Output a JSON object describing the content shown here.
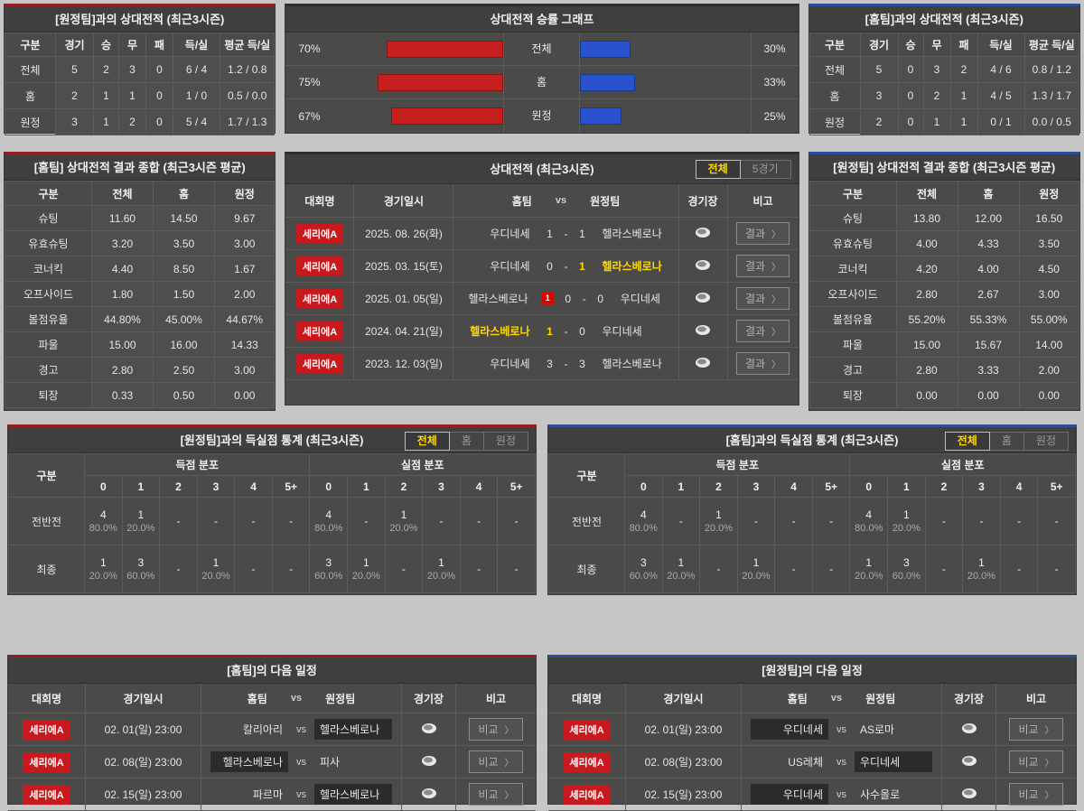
{
  "colors": {
    "accent_red": "#931f24",
    "accent_blue": "#2d4d9a",
    "bar_red": "#c5201d",
    "bar_blue": "#2952cc",
    "badge_red": "#c8191e",
    "win_yellow": "#ffd800"
  },
  "top_home_record": {
    "title": "[원정팀]과의 상대전적 (최근3시즌)",
    "headers": [
      "구분",
      "경기",
      "승",
      "무",
      "패",
      "득/실",
      "평균 득/실"
    ],
    "rows": [
      [
        "전체",
        "5",
        "2",
        "3",
        "0",
        "6 / 4",
        "1.2 / 0.8"
      ],
      [
        "홈",
        "2",
        "1",
        "1",
        "0",
        "1 / 0",
        "0.5 / 0.0"
      ],
      [
        "원정",
        "3",
        "1",
        "2",
        "0",
        "5 / 4",
        "1.7 / 1.3"
      ]
    ]
  },
  "winrate_chart": {
    "type": "bar",
    "title": "상대전적 승률 그래프",
    "rows": [
      {
        "left_label": "70%",
        "left_pct": 70,
        "center": "전체",
        "right_pct": 30,
        "right_label": "30%"
      },
      {
        "left_label": "75%",
        "left_pct": 75,
        "center": "홈",
        "right_pct": 33,
        "right_label": "33%"
      },
      {
        "left_label": "67%",
        "left_pct": 67,
        "center": "원정",
        "right_pct": 25,
        "right_label": "25%"
      }
    ]
  },
  "top_away_record": {
    "title": "[홈팀]과의 상대전적 (최근3시즌)",
    "headers": [
      "구분",
      "경기",
      "승",
      "무",
      "패",
      "득/실",
      "평균 득/실"
    ],
    "rows": [
      [
        "전체",
        "5",
        "0",
        "3",
        "2",
        "4 / 6",
        "0.8 / 1.2"
      ],
      [
        "홈",
        "3",
        "0",
        "2",
        "1",
        "4 / 5",
        "1.3 / 1.7"
      ],
      [
        "원정",
        "2",
        "0",
        "1",
        "1",
        "0 / 1",
        "0.0 / 0.5"
      ]
    ]
  },
  "home_summary": {
    "title": "[홈팀] 상대전적 결과 종합 (최근3시즌 평균)",
    "headers": [
      "구분",
      "전체",
      "홈",
      "원정"
    ],
    "rows": [
      [
        "슈팅",
        "11.60",
        "14.50",
        "9.67"
      ],
      [
        "유효슈팅",
        "3.20",
        "3.50",
        "3.00"
      ],
      [
        "코너킥",
        "4.40",
        "8.50",
        "1.67"
      ],
      [
        "오프사이드",
        "1.80",
        "1.50",
        "2.00"
      ],
      [
        "볼점유율",
        "44.80%",
        "45.00%",
        "44.67%"
      ],
      [
        "파울",
        "15.00",
        "16.00",
        "14.33"
      ],
      [
        "경고",
        "2.80",
        "2.50",
        "3.00"
      ],
      [
        "퇴장",
        "0.33",
        "0.50",
        "0.00"
      ]
    ]
  },
  "away_summary": {
    "title": "[원정팀] 상대전적 결과 종합 (최근3시즌 평균)",
    "headers": [
      "구분",
      "전체",
      "홈",
      "원정"
    ],
    "rows": [
      [
        "슈팅",
        "13.80",
        "12.00",
        "16.50"
      ],
      [
        "유효슈팅",
        "4.00",
        "4.33",
        "3.50"
      ],
      [
        "코너킥",
        "4.20",
        "4.00",
        "4.50"
      ],
      [
        "오프사이드",
        "2.80",
        "2.67",
        "3.00"
      ],
      [
        "볼점유율",
        "55.20%",
        "55.33%",
        "55.00%"
      ],
      [
        "파울",
        "15.00",
        "15.67",
        "14.00"
      ],
      [
        "경고",
        "2.80",
        "3.33",
        "2.00"
      ],
      [
        "퇴장",
        "0.00",
        "0.00",
        "0.00"
      ]
    ]
  },
  "h2h": {
    "title": "상대전적 (최근3시즌)",
    "tabs": [
      {
        "label": "전체",
        "active": true
      },
      {
        "label": "5경기",
        "active": false
      }
    ],
    "headers": {
      "league": "대회명",
      "datetime": "경기일시",
      "home": "홈팀",
      "vs": "vs",
      "away": "원정팀",
      "stadium": "경기장",
      "note": "비고"
    },
    "button_label": "결과",
    "chevron": "〉",
    "score_sep": "-",
    "rows": [
      {
        "league": "세리에A",
        "date": "2025. 08. 26(화)",
        "home": "우디네세",
        "home_score": "1",
        "away_score": "1",
        "away": "헬라스베로나",
        "home_win": false,
        "away_win": false,
        "home_card": ""
      },
      {
        "league": "세리에A",
        "date": "2025. 03. 15(토)",
        "home": "우디네세",
        "home_score": "0",
        "away_score": "1",
        "away": "헬라스베로나",
        "home_win": false,
        "away_win": true,
        "home_card": ""
      },
      {
        "league": "세리에A",
        "date": "2025. 01. 05(일)",
        "home": "헬라스베로나",
        "home_score": "0",
        "away_score": "0",
        "away": "우디네세",
        "home_win": false,
        "away_win": false,
        "home_card": "1"
      },
      {
        "league": "세리에A",
        "date": "2024. 04. 21(일)",
        "home": "헬라스베로나",
        "home_score": "1",
        "away_score": "0",
        "away": "우디네세",
        "home_win": true,
        "away_win": false,
        "home_card": ""
      },
      {
        "league": "세리에A",
        "date": "2023. 12. 03(일)",
        "home": "우디네세",
        "home_score": "3",
        "away_score": "3",
        "away": "헬라스베로나",
        "home_win": false,
        "away_win": false,
        "home_card": ""
      }
    ]
  },
  "goals_home": {
    "title": "[원정팀]과의 득실점 통계 (최근3시즌)",
    "tabs": [
      {
        "label": "전체",
        "active": true
      },
      {
        "label": "홈",
        "active": false
      },
      {
        "label": "원정",
        "active": false
      }
    ],
    "col_header": "구분",
    "groups": [
      "득점 분포",
      "실점 분포"
    ],
    "cols": [
      "0",
      "1",
      "2",
      "3",
      "4",
      "5+"
    ],
    "rows": [
      {
        "label": "전반전",
        "cells": [
          {
            "n": "4",
            "p": "80.0%"
          },
          {
            "n": "1",
            "p": "20.0%"
          },
          {
            "n": "-",
            "p": ""
          },
          {
            "n": "-",
            "p": ""
          },
          {
            "n": "-",
            "p": ""
          },
          {
            "n": "-",
            "p": ""
          },
          {
            "n": "4",
            "p": "80.0%"
          },
          {
            "n": "-",
            "p": ""
          },
          {
            "n": "1",
            "p": "20.0%"
          },
          {
            "n": "-",
            "p": ""
          },
          {
            "n": "-",
            "p": ""
          },
          {
            "n": "-",
            "p": ""
          }
        ]
      },
      {
        "label": "최종",
        "cells": [
          {
            "n": "1",
            "p": "20.0%"
          },
          {
            "n": "3",
            "p": "60.0%"
          },
          {
            "n": "-",
            "p": ""
          },
          {
            "n": "1",
            "p": "20.0%"
          },
          {
            "n": "-",
            "p": ""
          },
          {
            "n": "-",
            "p": ""
          },
          {
            "n": "3",
            "p": "60.0%"
          },
          {
            "n": "1",
            "p": "20.0%"
          },
          {
            "n": "-",
            "p": ""
          },
          {
            "n": "1",
            "p": "20.0%"
          },
          {
            "n": "-",
            "p": ""
          },
          {
            "n": "-",
            "p": ""
          }
        ]
      }
    ]
  },
  "goals_away": {
    "title": "[홈팀]과의 득실점 통계 (최근3시즌)",
    "tabs": [
      {
        "label": "전체",
        "active": true
      },
      {
        "label": "홈",
        "active": false
      },
      {
        "label": "원정",
        "active": false
      }
    ],
    "col_header": "구분",
    "groups": [
      "득점 분포",
      "실점 분포"
    ],
    "cols": [
      "0",
      "1",
      "2",
      "3",
      "4",
      "5+"
    ],
    "rows": [
      {
        "label": "전반전",
        "cells": [
          {
            "n": "4",
            "p": "80.0%"
          },
          {
            "n": "-",
            "p": ""
          },
          {
            "n": "1",
            "p": "20.0%"
          },
          {
            "n": "-",
            "p": ""
          },
          {
            "n": "-",
            "p": ""
          },
          {
            "n": "-",
            "p": ""
          },
          {
            "n": "4",
            "p": "80.0%"
          },
          {
            "n": "1",
            "p": "20.0%"
          },
          {
            "n": "-",
            "p": ""
          },
          {
            "n": "-",
            "p": ""
          },
          {
            "n": "-",
            "p": ""
          },
          {
            "n": "-",
            "p": ""
          }
        ]
      },
      {
        "label": "최종",
        "cells": [
          {
            "n": "3",
            "p": "60.0%"
          },
          {
            "n": "1",
            "p": "20.0%"
          },
          {
            "n": "-",
            "p": ""
          },
          {
            "n": "1",
            "p": "20.0%"
          },
          {
            "n": "-",
            "p": ""
          },
          {
            "n": "-",
            "p": ""
          },
          {
            "n": "1",
            "p": "20.0%"
          },
          {
            "n": "3",
            "p": "60.0%"
          },
          {
            "n": "-",
            "p": ""
          },
          {
            "n": "1",
            "p": "20.0%"
          },
          {
            "n": "-",
            "p": ""
          },
          {
            "n": "-",
            "p": ""
          }
        ]
      }
    ]
  },
  "schedule_home": {
    "title": "[홈팀]의 다음 일정",
    "headers": {
      "league": "대회명",
      "datetime": "경기일시",
      "home": "홈팀",
      "vs": "vs",
      "away": "원정팀",
      "stadium": "경기장",
      "note": "비고"
    },
    "button_label": "비교",
    "chevron": "〉",
    "rows": [
      {
        "league": "세리에A",
        "date": "02. 01(일) 23:00",
        "home": "칼리아리",
        "away": "헬라스베로나",
        "home_hl": false,
        "away_hl": true
      },
      {
        "league": "세리에A",
        "date": "02. 08(일) 23:00",
        "home": "헬라스베로나",
        "away": "피사",
        "home_hl": true,
        "away_hl": false
      },
      {
        "league": "세리에A",
        "date": "02. 15(일) 23:00",
        "home": "파르마",
        "away": "헬라스베로나",
        "home_hl": false,
        "away_hl": true
      }
    ]
  },
  "schedule_away": {
    "title": "[원정팀]의 다음 일정",
    "headers": {
      "league": "대회명",
      "datetime": "경기일시",
      "home": "홈팀",
      "vs": "vs",
      "away": "원정팀",
      "stadium": "경기장",
      "note": "비고"
    },
    "button_label": "비교",
    "chevron": "〉",
    "rows": [
      {
        "league": "세리에A",
        "date": "02. 01(일) 23:00",
        "home": "우디네세",
        "away": "AS로마",
        "home_hl": true,
        "away_hl": false
      },
      {
        "league": "세리에A",
        "date": "02. 08(일) 23:00",
        "home": "US레체",
        "away": "우디네세",
        "home_hl": false,
        "away_hl": true
      },
      {
        "league": "세리에A",
        "date": "02. 15(일) 23:00",
        "home": "우디네세",
        "away": "사수올로",
        "home_hl": true,
        "away_hl": false
      }
    ]
  }
}
